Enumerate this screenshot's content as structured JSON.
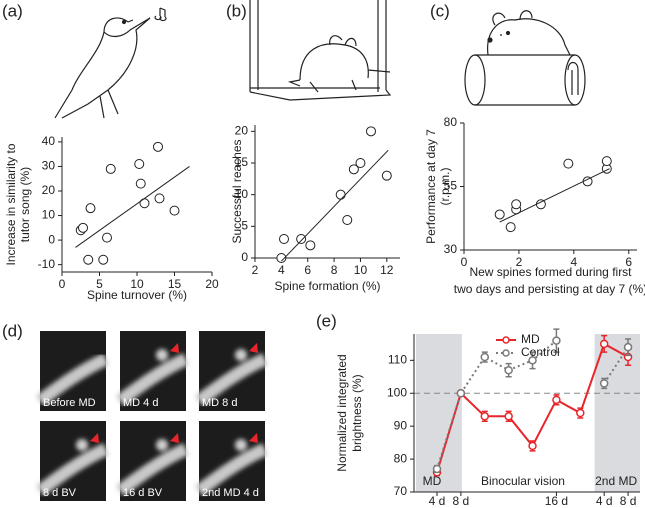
{
  "chart_data": [
    {
      "type": "scatter",
      "panel_label": "(a)",
      "xlabel": "Spine turnover (%)",
      "ylabel": [
        "Increase in similarity to",
        "tutor song (%)"
      ],
      "series": [
        {
          "x": [
            2.5,
            2.8,
            3.5,
            3.8,
            5.5,
            6,
            6.5,
            10.3,
            10.5,
            11,
            12.8,
            13,
            15
          ],
          "values": [
            4,
            5,
            -8,
            13,
            -8,
            1,
            29,
            31,
            23,
            15,
            38,
            17,
            12
          ]
        }
      ],
      "fit": {
        "x": [
          1.8,
          17
        ],
        "y": [
          -3,
          30
        ]
      },
      "xlim": [
        0,
        20
      ],
      "xticks": [
        0,
        5,
        10,
        15,
        20
      ],
      "ylim": [
        -13,
        42
      ],
      "yticks": [
        -10,
        0,
        10,
        20,
        30,
        40
      ]
    },
    {
      "type": "scatter",
      "panel_label": "(b)",
      "xlabel": "Spine formation (%)",
      "ylabel": [
        "Successful reaches"
      ],
      "series": [
        {
          "x": [
            4,
            4.2,
            5.5,
            6.2,
            8.5,
            9,
            9.5,
            10,
            10.8,
            12
          ],
          "values": [
            0,
            3,
            3,
            2,
            10,
            6,
            14,
            15,
            20,
            13
          ]
        }
      ],
      "fit": {
        "x": [
          4,
          12.1
        ],
        "y": [
          -0.5,
          17
        ]
      },
      "xlim": [
        2,
        13
      ],
      "xticks": [
        2,
        4,
        6,
        8,
        10,
        12
      ],
      "ylim": [
        0,
        21
      ],
      "yticks": [
        0,
        5,
        10,
        15,
        20
      ]
    },
    {
      "type": "scatter",
      "panel_label": "(c)",
      "xlabel": [
        "New spines formed during first",
        "two days and persisting at day 7 (%)"
      ],
      "ylabel": [
        "Performance at day 7",
        "(r.p.m.)"
      ],
      "series": [
        {
          "x": [
            1.3,
            1.7,
            1.9,
            1.9,
            2.8,
            3.8,
            4.5,
            5.2,
            5.2
          ],
          "values": [
            44,
            39,
            46,
            48,
            48,
            64,
            57,
            62,
            65
          ]
        }
      ],
      "fit": {
        "x": [
          1.3,
          5.3
        ],
        "y": [
          41,
          62
        ]
      },
      "xlim": [
        0,
        6.3
      ],
      "xticks": [
        0,
        2,
        4,
        6
      ],
      "ylim": [
        30,
        80
      ],
      "yticks": [
        30,
        55,
        80
      ]
    },
    {
      "type": "line",
      "panel_label": "(e)",
      "ylabel": [
        "Normalized integrated",
        "brightness (%)"
      ],
      "categories": [
        "4 d",
        "8 d",
        null,
        null,
        null,
        "16 d",
        null,
        "4 d",
        "8 d"
      ],
      "groups": [
        "MD",
        "Binocular vision",
        "2nd MD"
      ],
      "series": [
        {
          "name": "MD",
          "color": "#e8252a",
          "values": [
            76,
            100,
            93,
            93,
            84,
            98,
            94,
            115,
            111
          ],
          "errors": [
            1,
            0,
            1.5,
            1.5,
            1.5,
            1.5,
            1.5,
            2.5,
            2.5
          ]
        },
        {
          "name": "Control",
          "color": "#7a7a7a",
          "values": [
            77,
            100,
            111,
            107,
            110,
            116,
            null,
            103,
            114
          ],
          "errors": [
            1,
            0,
            1.5,
            2,
            2.5,
            3.5,
            null,
            1.5,
            2.5
          ]
        }
      ],
      "reference": 100,
      "ylim": [
        70,
        118
      ],
      "yticks": [
        70,
        80,
        90,
        100,
        110
      ]
    }
  ],
  "image_panel": {
    "panel_label": "(d)",
    "captions": [
      "Before MD",
      "MD 4 d",
      "MD 8 d",
      "8 d BV",
      "16 d BV",
      "2nd MD 4 d"
    ]
  }
}
